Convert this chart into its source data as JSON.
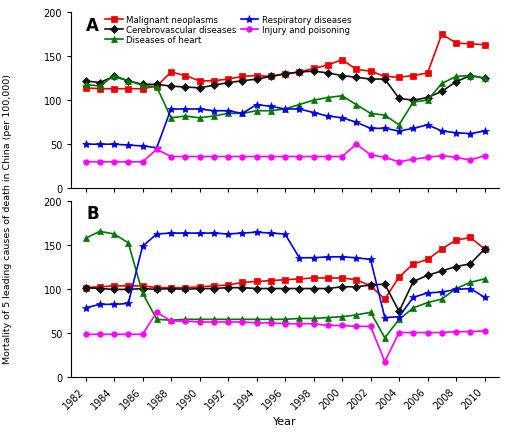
{
  "years": [
    1982,
    1983,
    1984,
    1985,
    1986,
    1987,
    1988,
    1989,
    1990,
    1991,
    1992,
    1993,
    1994,
    1995,
    1996,
    1997,
    1998,
    1999,
    2000,
    2001,
    2002,
    2003,
    2004,
    2005,
    2006,
    2007,
    2008,
    2009,
    2010
  ],
  "panel_A": {
    "malignant_neoplasms": [
      114,
      113,
      113,
      113,
      113,
      116,
      132,
      128,
      122,
      122,
      124,
      127,
      128,
      127,
      130,
      132,
      136,
      140,
      146,
      135,
      133,
      127,
      126,
      128,
      131,
      175,
      165,
      164,
      163
    ],
    "cerebrovascular_diseases": [
      122,
      120,
      127,
      122,
      118,
      118,
      116,
      115,
      114,
      117,
      120,
      122,
      124,
      127,
      130,
      132,
      133,
      131,
      128,
      126,
      124,
      124,
      102,
      100,
      103,
      110,
      121,
      128,
      125
    ],
    "diseases_of_heart": [
      118,
      116,
      128,
      122,
      117,
      115,
      80,
      82,
      80,
      82,
      85,
      85,
      88,
      88,
      90,
      95,
      100,
      103,
      105,
      95,
      85,
      83,
      72,
      98,
      100,
      119,
      127,
      128,
      125
    ],
    "respiratory_diseases": [
      50,
      50,
      50,
      49,
      48,
      46,
      90,
      90,
      90,
      88,
      88,
      85,
      95,
      93,
      90,
      90,
      86,
      82,
      80,
      75,
      68,
      68,
      65,
      68,
      72,
      65,
      63,
      62,
      65
    ],
    "injury_and_poisoning": [
      30,
      30,
      30,
      30,
      30,
      44,
      36,
      36,
      36,
      36,
      36,
      36,
      36,
      36,
      36,
      36,
      36,
      36,
      36,
      50,
      38,
      35,
      30,
      33,
      35,
      37,
      35,
      32,
      37
    ]
  },
  "panel_B": {
    "malignant_neoplasms": [
      101,
      102,
      103,
      103,
      103,
      101,
      101,
      101,
      102,
      103,
      104,
      107,
      108,
      109,
      110,
      111,
      112,
      112,
      112,
      110,
      103,
      88,
      113,
      128,
      133,
      145,
      155,
      158,
      145
    ],
    "cerebrovascular_diseases": [
      101,
      100,
      99,
      99,
      100,
      99,
      100,
      99,
      100,
      100,
      101,
      101,
      100,
      100,
      100,
      100,
      100,
      100,
      102,
      102,
      104,
      105,
      74,
      108,
      115,
      120,
      125,
      128,
      145
    ],
    "diseases_of_heart": [
      157,
      165,
      162,
      152,
      95,
      65,
      64,
      65,
      65,
      65,
      65,
      65,
      65,
      65,
      65,
      66,
      66,
      67,
      68,
      70,
      73,
      44,
      65,
      78,
      84,
      88,
      100,
      107,
      111
    ],
    "respiratory_diseases": [
      78,
      82,
      82,
      83,
      148,
      162,
      163,
      163,
      163,
      163,
      162,
      163,
      164,
      163,
      162,
      135,
      135,
      136,
      136,
      135,
      133,
      67,
      68,
      90,
      95,
      96,
      99,
      100,
      90
    ],
    "injury_and_poisoning": [
      48,
      48,
      48,
      48,
      48,
      73,
      63,
      63,
      62,
      62,
      62,
      62,
      61,
      61,
      60,
      60,
      60,
      58,
      58,
      57,
      57,
      17,
      50,
      50,
      50,
      50,
      51,
      51,
      52
    ]
  },
  "colors": {
    "malignant_neoplasms": "#EE0000",
    "cerebrovascular_diseases": "#111111",
    "diseases_of_heart": "#007700",
    "respiratory_diseases": "#0000EE",
    "injury_and_poisoning": "#FF00FF"
  },
  "markers": {
    "malignant_neoplasms": "s",
    "cerebrovascular_diseases": "D",
    "diseases_of_heart": "^",
    "respiratory_diseases": "*",
    "injury_and_poisoning": "o"
  },
  "labels": {
    "malignant_neoplasms": "Malignant neoplasms",
    "cerebrovascular_diseases": "Cerebrovascular diseases",
    "diseases_of_heart": "Diseases of heart",
    "respiratory_diseases": "Respiratory diseases",
    "injury_and_poisoning": "Injury and poisoning"
  },
  "ylabel": "Mortality of 5 leading causes of death in China (per 100,000)",
  "xlabel": "Year",
  "ylim": [
    0,
    200
  ],
  "yticks": [
    0,
    50,
    100,
    150,
    200
  ],
  "xticks": [
    1982,
    1984,
    1986,
    1988,
    1990,
    1992,
    1994,
    1996,
    1998,
    2000,
    2002,
    2004,
    2006,
    2008,
    2010
  ],
  "panel_A_label": "A",
  "panel_B_label": "B"
}
